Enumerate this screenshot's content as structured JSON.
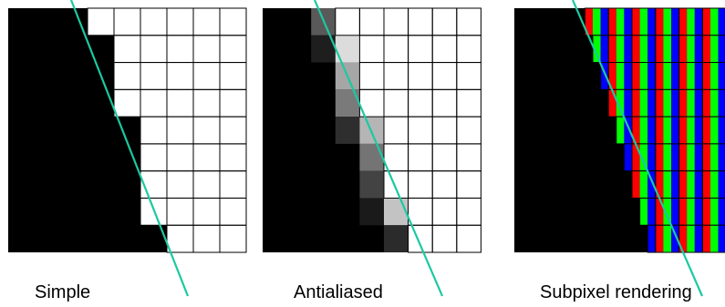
{
  "colors": {
    "background": "#ffffff",
    "ink": "#000000",
    "grid_line": "#000000",
    "edge_line": "#1bc9a0",
    "subpixel_red": "#ff0000",
    "subpixel_green": "#00ff00",
    "subpixel_blue": "#0000ff"
  },
  "panels": [
    {
      "id": "simple",
      "caption": "Simple",
      "grid": {
        "cols": 9,
        "rows": 9
      },
      "white_from_col": [
        3,
        4,
        4,
        4,
        5,
        5,
        5,
        5,
        6
      ]
    },
    {
      "id": "antialiased",
      "caption": "Antialiased",
      "grid": {
        "cols": 9,
        "rows": 9
      },
      "white_from_col": [
        3,
        4,
        4,
        4,
        5,
        5,
        5,
        6,
        6
      ],
      "gray_cells": [
        {
          "row": 0,
          "col": 2,
          "shade": "#595959"
        },
        {
          "row": 1,
          "col": 2,
          "shade": "#1e1e1e"
        },
        {
          "row": 1,
          "col": 3,
          "shade": "#dcdcdc"
        },
        {
          "row": 2,
          "col": 3,
          "shade": "#a6a6a6"
        },
        {
          "row": 3,
          "col": 3,
          "shade": "#7a7a7a"
        },
        {
          "row": 4,
          "col": 3,
          "shade": "#2e2e2e"
        },
        {
          "row": 4,
          "col": 4,
          "shade": "#b5b5b5"
        },
        {
          "row": 5,
          "col": 4,
          "shade": "#747474"
        },
        {
          "row": 6,
          "col": 4,
          "shade": "#434343"
        },
        {
          "row": 7,
          "col": 4,
          "shade": "#1a1a1a"
        },
        {
          "row": 7,
          "col": 5,
          "shade": "#c3c3c3"
        },
        {
          "row": 8,
          "col": 5,
          "shade": "#2b2b2b"
        }
      ]
    },
    {
      "id": "subpixel",
      "caption": "Subpixel rendering",
      "grid": {
        "cols": 9,
        "rows": 9
      },
      "subpixels_per_col": 3,
      "colored_from_sub": [
        9,
        10,
        11,
        12,
        13,
        14,
        15,
        16,
        17
      ]
    }
  ]
}
